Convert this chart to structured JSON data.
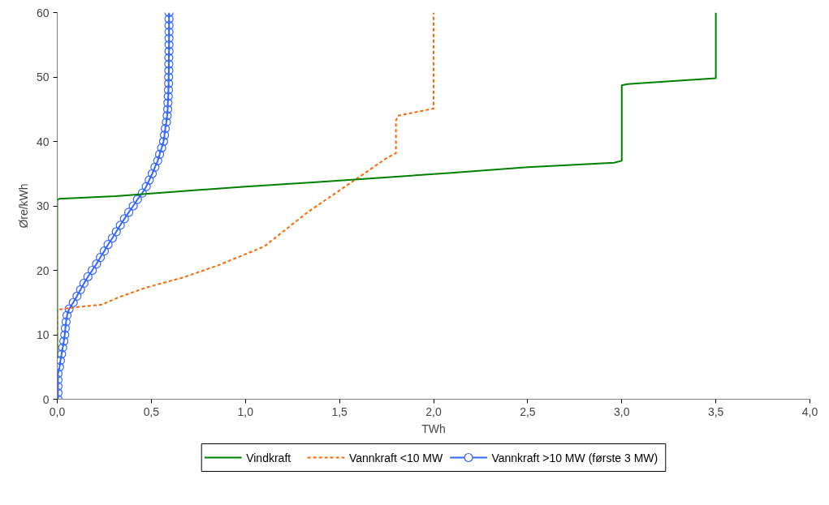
{
  "chart_data": {
    "type": "line",
    "xlabel": "TWh",
    "ylabel": "Øre/kWh",
    "xlim": [
      0,
      4
    ],
    "ylim": [
      0,
      60
    ],
    "xticks": [
      {
        "value": 0,
        "label": "0,0"
      },
      {
        "value": 0.5,
        "label": "0,5"
      },
      {
        "value": 1,
        "label": "1,0"
      },
      {
        "value": 1.5,
        "label": "1,5"
      },
      {
        "value": 2,
        "label": "2,0"
      },
      {
        "value": 2.5,
        "label": "2,5"
      },
      {
        "value": 3,
        "label": "3,0"
      },
      {
        "value": 3.5,
        "label": "3,5"
      },
      {
        "value": 4,
        "label": "4,0"
      }
    ],
    "yticks": [
      0,
      10,
      20,
      30,
      40,
      50,
      60
    ],
    "grid": false,
    "legend": "bottom",
    "series": [
      {
        "name": "Vindkraft",
        "color": "#008000",
        "line_style": "solid",
        "marker": "none",
        "x": [
          0,
          0,
          0.01,
          0.31,
          1.0,
          1.39,
          2.08,
          2.5,
          2.96,
          3.0,
          3.0,
          3.03,
          3.19,
          3.5,
          3.5
        ],
        "values": [
          6.3,
          30.9,
          31.1,
          31.5,
          33.0,
          33.7,
          35.1,
          36.0,
          36.7,
          37.0,
          48.7,
          48.9,
          49.2,
          49.8,
          60
        ]
      },
      {
        "name": "Vannkraft <10 MW",
        "color": "#ff6600",
        "line_style": "dashed",
        "marker": "none",
        "x": [
          0,
          0,
          0.11,
          0.24,
          0.325,
          0.469,
          0.67,
          0.857,
          1.1,
          1.33,
          1.58,
          1.75,
          1.8,
          1.8,
          1.81,
          2.0,
          2.0
        ],
        "values": [
          7.2,
          13.9,
          14.3,
          14.7,
          15.8,
          17.3,
          18.9,
          20.8,
          23.7,
          29.0,
          34.0,
          37.4,
          38.2,
          43.2,
          44.0,
          45.1,
          60
        ]
      },
      {
        "name": "Vannkraft >10 MW (første 3 MW)",
        "color": "#3366ff",
        "line_style": "solid",
        "marker": "circle",
        "x": [
          0.004,
          0.004,
          0.004,
          0.004,
          0.004,
          0.012,
          0.017,
          0.023,
          0.029,
          0.035,
          0.04,
          0.043,
          0.047,
          0.052,
          0.063,
          0.085,
          0.105,
          0.124,
          0.142,
          0.163,
          0.186,
          0.209,
          0.229,
          0.25,
          0.27,
          0.293,
          0.314,
          0.335,
          0.357,
          0.38,
          0.404,
          0.426,
          0.452,
          0.473,
          0.489,
          0.505,
          0.519,
          0.534,
          0.544,
          0.555,
          0.565,
          0.57,
          0.574,
          0.58,
          0.584,
          0.587,
          0.588,
          0.59,
          0.591,
          0.592,
          0.592,
          0.593,
          0.593,
          0.593,
          0.594,
          0.594,
          0.594,
          0.594,
          0.594,
          0.594,
          0.594
        ],
        "values": [
          0,
          1,
          2,
          3,
          4,
          5,
          6,
          7,
          8,
          9,
          10,
          11,
          12,
          13,
          14,
          15,
          16,
          17,
          18,
          19,
          20,
          21,
          22,
          23,
          24,
          25,
          26,
          27,
          28,
          29,
          30,
          31,
          32,
          33,
          34,
          35,
          36,
          37,
          38,
          39,
          40,
          41,
          42,
          43,
          44,
          45,
          46,
          47,
          48,
          49,
          50,
          51,
          52,
          53,
          54,
          55,
          56,
          57,
          58,
          59,
          60
        ]
      }
    ]
  }
}
